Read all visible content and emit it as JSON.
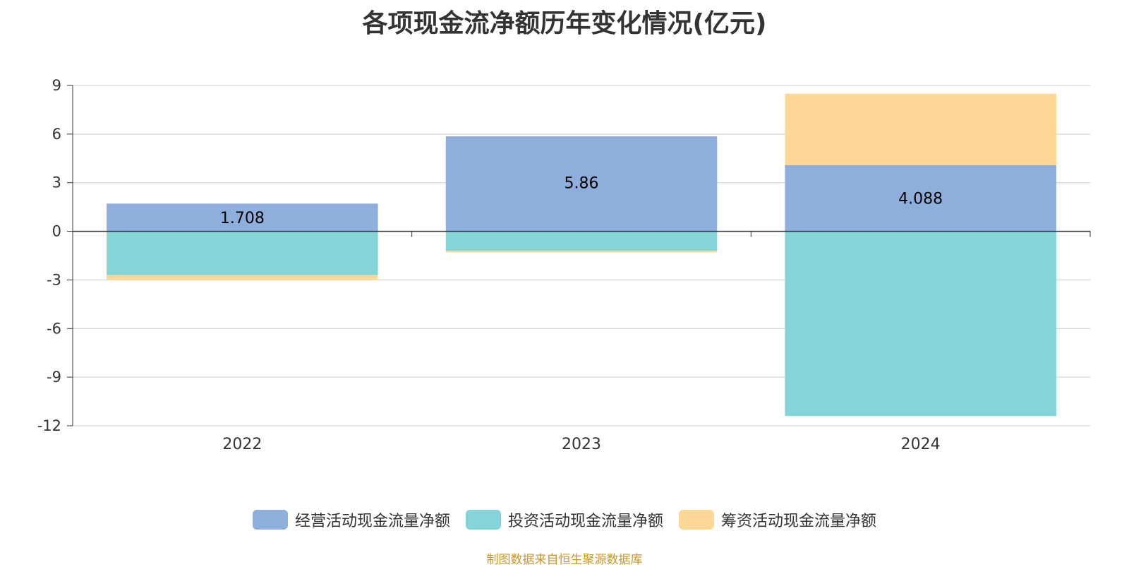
{
  "chart_data": {
    "type": "bar",
    "stacked": true,
    "title": "各项现金流净额历年变化情况(亿元)",
    "categories": [
      "2022",
      "2023",
      "2024"
    ],
    "ylim": [
      -12,
      9
    ],
    "yticks": [
      9,
      6,
      3,
      0,
      -3,
      -6,
      -9,
      -12
    ],
    "series": [
      {
        "name": "经营活动现金流量净额",
        "color": "#8eaedb",
        "values": [
          1.708,
          5.86,
          4.088
        ],
        "labels": [
          "1.708",
          "5.86",
          "4.088"
        ]
      },
      {
        "name": "投资活动现金流量净额",
        "color": "#85d5d8",
        "values": [
          -2.7,
          -1.2,
          -11.4
        ]
      },
      {
        "name": "筹资活动现金流量净额",
        "color": "#fdd897",
        "values": [
          -0.3,
          -0.1,
          4.4
        ]
      }
    ],
    "legend_position": "bottom",
    "source": "制图数据来自恒生聚源数据库"
  }
}
